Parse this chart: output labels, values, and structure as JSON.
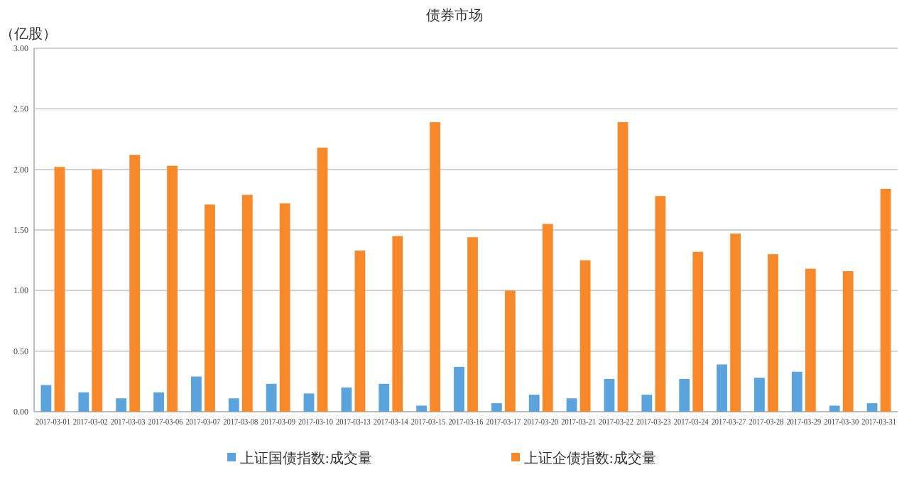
{
  "chart_data": {
    "type": "bar",
    "title": "债券市场",
    "ylabel": "（亿股）",
    "categories": [
      "2017-03-01",
      "2017-03-02",
      "2017-03-03",
      "2017-03-06",
      "2017-03-07",
      "2017-03-08",
      "2017-03-09",
      "2017-03-10",
      "2017-03-13",
      "2017-03-14",
      "2017-03-15",
      "2017-03-16",
      "2017-03-17",
      "2017-03-20",
      "2017-03-21",
      "2017-03-22",
      "2017-03-23",
      "2017-03-24",
      "2017-03-27",
      "2017-03-28",
      "2017-03-29",
      "2017-03-30",
      "2017-03-31"
    ],
    "series": [
      {
        "name": "上证国债指数:成交量",
        "color": "#5ba3dc",
        "values": [
          0.22,
          0.16,
          0.11,
          0.16,
          0.29,
          0.11,
          0.23,
          0.15,
          0.2,
          0.23,
          0.05,
          0.37,
          0.07,
          0.14,
          0.11,
          0.27,
          0.14,
          0.27,
          0.39,
          0.28,
          0.33,
          0.05,
          0.07
        ]
      },
      {
        "name": "上证企债指数:成交量",
        "color": "#f7892b",
        "values": [
          2.02,
          2.0,
          2.12,
          2.03,
          1.71,
          1.79,
          1.72,
          2.18,
          1.33,
          1.45,
          2.39,
          1.44,
          1.0,
          1.55,
          1.25,
          2.39,
          1.78,
          1.32,
          1.47,
          1.3,
          1.18,
          1.16,
          1.84
        ]
      }
    ],
    "ylim": [
      0,
      3
    ],
    "yticks": [
      {
        "value": 0,
        "label": "0.00"
      },
      {
        "value": 0.5,
        "label": "0.50"
      },
      {
        "value": 1,
        "label": "1.00"
      },
      {
        "value": 1.5,
        "label": "1.50"
      },
      {
        "value": 2,
        "label": "2.00"
      },
      {
        "value": 2.5,
        "label": "2.50"
      },
      {
        "value": 3,
        "label": "3.00"
      }
    ],
    "grid": "y",
    "legend": "bottom"
  }
}
